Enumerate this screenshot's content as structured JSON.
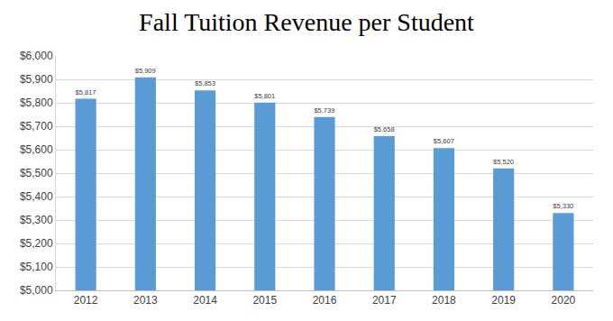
{
  "chart_data": {
    "type": "bar",
    "title": "Fall Tuition Revenue per Student",
    "categories": [
      "2012",
      "2013",
      "2014",
      "2015",
      "2016",
      "2017",
      "2018",
      "2019",
      "2020"
    ],
    "values": [
      5817,
      5909,
      5853,
      5801,
      5739,
      5658,
      5607,
      5520,
      5330
    ],
    "value_labels": [
      "$5,817",
      "$5,909",
      "$5,853",
      "$5,801",
      "$5,739",
      "$5,658",
      "$5,607",
      "$5,520",
      "$5,330"
    ],
    "data_labels": true,
    "color": "#5b9bd5",
    "ylim": [
      5000,
      6000
    ],
    "yticks": [
      {
        "value": 5000,
        "label": "$5,000"
      },
      {
        "value": 5100,
        "label": "$5,100"
      },
      {
        "value": 5200,
        "label": "$5,200"
      },
      {
        "value": 5300,
        "label": "$5,300"
      },
      {
        "value": 5400,
        "label": "$5,400"
      },
      {
        "value": 5500,
        "label": "$5,500"
      },
      {
        "value": 5600,
        "label": "$5,600"
      },
      {
        "value": 5700,
        "label": "$5,700"
      },
      {
        "value": 5800,
        "label": "$5,800"
      },
      {
        "value": 5900,
        "label": "$5,900"
      },
      {
        "value": 6000,
        "label": "$6,000"
      }
    ],
    "grid": true
  }
}
